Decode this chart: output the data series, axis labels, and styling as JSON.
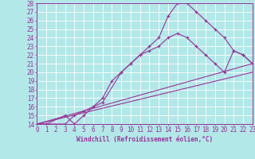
{
  "xlabel": "Windchill (Refroidissement éolien,°C)",
  "background_color": "#b2e8e8",
  "grid_color": "#ffffff",
  "line_color": "#993399",
  "xlim": [
    0,
    23
  ],
  "ylim": [
    14,
    28
  ],
  "xticks": [
    0,
    1,
    2,
    3,
    4,
    5,
    6,
    7,
    8,
    9,
    10,
    11,
    12,
    13,
    14,
    15,
    16,
    17,
    18,
    19,
    20,
    21,
    22,
    23
  ],
  "yticks": [
    14,
    15,
    16,
    17,
    18,
    19,
    20,
    21,
    22,
    23,
    24,
    25,
    26,
    27,
    28
  ],
  "curve1_x": [
    0,
    1,
    3,
    4,
    5,
    6,
    7,
    8,
    9,
    10,
    11,
    12,
    13,
    14,
    15,
    16,
    17,
    18,
    19,
    20,
    21,
    22,
    23
  ],
  "curve1_y": [
    14,
    14,
    15,
    14,
    15,
    16,
    17,
    19,
    20,
    21,
    22,
    23,
    24,
    26.5,
    28,
    28,
    27,
    26,
    25,
    24,
    22.5,
    22,
    21
  ],
  "curve2_x": [
    0,
    3,
    4,
    5,
    7,
    9,
    10,
    11,
    12,
    13,
    14,
    15,
    16,
    17,
    18,
    19,
    20,
    21,
    22,
    23
  ],
  "curve2_y": [
    14,
    14,
    15,
    15.5,
    16.5,
    20,
    21,
    22,
    22.5,
    23,
    24,
    24.5,
    24,
    23,
    22,
    21,
    20,
    22.5,
    22,
    21
  ],
  "curve3_x": [
    0,
    23
  ],
  "curve3_y": [
    14,
    20
  ],
  "curve4_x": [
    0,
    23
  ],
  "curve4_y": [
    14,
    21
  ],
  "tick_fontsize": 5.5,
  "xlabel_fontsize": 5.5
}
